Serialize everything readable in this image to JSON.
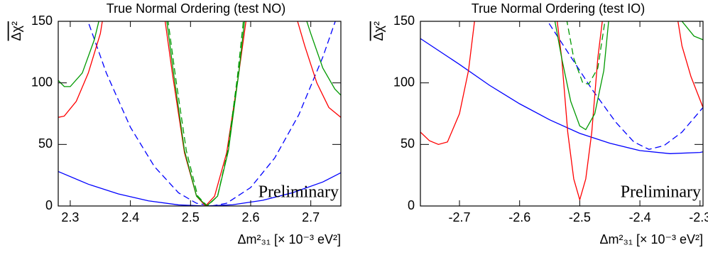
{
  "chart_data": [
    {
      "type": "line",
      "title": "True Normal Ordering (test NO)",
      "x_label": "Δm²₃₁ [× 10⁻³ eV²]",
      "y_label": "Δχ²",
      "annotation": "Preliminary",
      "annotation_color": "#ff0000",
      "xlim": [
        2.28,
        2.75
      ],
      "ylim": [
        0,
        150
      ],
      "xticks": [
        2.3,
        2.4,
        2.5,
        2.6,
        2.7
      ],
      "yticks": [
        0,
        50,
        100,
        150
      ],
      "series": [
        {
          "color": "#0000ff",
          "style": "solid",
          "x": [
            2.28,
            2.33,
            2.38,
            2.43,
            2.48,
            2.525,
            2.57,
            2.62,
            2.67,
            2.72,
            2.75
          ],
          "values": [
            28,
            17.7,
            9.8,
            4.2,
            0.9,
            0,
            1,
            4.6,
            10.8,
            19.5,
            27
          ]
        },
        {
          "color": "#0000ff",
          "style": "dashed",
          "x": [
            2.32,
            2.36,
            2.4,
            2.44,
            2.48,
            2.51,
            2.535,
            2.56,
            2.6,
            2.64,
            2.68,
            2.72,
            2.75
          ],
          "values": [
            163,
            108,
            64,
            32,
            10.7,
            2.2,
            0,
            2.2,
            15,
            39,
            74,
            121,
            163
          ]
        },
        {
          "color": "#ff0000",
          "style": "solid",
          "x": [
            2.28,
            2.29,
            2.31,
            2.33,
            2.35,
            2.355,
            null,
            2.455,
            2.47,
            2.49,
            2.51,
            2.525,
            2.54,
            2.56,
            2.58,
            2.595,
            null,
            2.675,
            2.69,
            2.71,
            2.73,
            2.75
          ],
          "values": [
            72,
            73,
            85,
            108,
            140,
            155,
            null,
            160,
            107,
            43,
            8,
            0,
            8,
            43,
            107,
            160,
            null,
            155,
            130,
            100,
            80,
            72
          ]
        },
        {
          "color": "#009900",
          "style": "solid",
          "x": [
            2.28,
            2.29,
            2.3,
            2.32,
            2.34,
            2.35,
            null,
            2.458,
            2.472,
            2.49,
            2.51,
            2.527,
            2.545,
            2.563,
            2.58,
            2.592,
            null,
            2.69,
            2.7,
            2.72,
            2.74,
            2.75
          ],
          "values": [
            102,
            97,
            97,
            108,
            135,
            155,
            null,
            160,
            107,
            45,
            8,
            0,
            8,
            45,
            107,
            160,
            null,
            155,
            140,
            112,
            95,
            90
          ]
        },
        {
          "color": "#009900",
          "style": "dashed",
          "x": [
            2.46,
            2.475,
            2.493,
            2.512,
            2.528,
            2.545,
            2.562,
            2.578,
            2.59
          ],
          "values": [
            160,
            105,
            45,
            8,
            0,
            8,
            45,
            105,
            160
          ]
        }
      ]
    },
    {
      "type": "line",
      "title": "True Normal Ordering (test IO)",
      "x_label": "Δm²₃₁ [× 10⁻³ eV²]",
      "y_label": "Δχ²",
      "annotation": "Preliminary",
      "annotation_color": "#ff0000",
      "xlim": [
        -2.765,
        -2.295
      ],
      "ylim": [
        0,
        150
      ],
      "xticks": [
        -2.7,
        -2.6,
        -2.5,
        -2.4,
        -2.3
      ],
      "yticks": [
        0,
        50,
        100,
        150
      ],
      "series": [
        {
          "color": "#0000ff",
          "style": "solid",
          "x": [
            -2.765,
            -2.7,
            -2.65,
            -2.6,
            -2.55,
            -2.5,
            -2.45,
            -2.4,
            -2.35,
            -2.3,
            -2.295
          ],
          "values": [
            136,
            115,
            98,
            83,
            70,
            59,
            51,
            45,
            42.5,
            43.5,
            44
          ]
        },
        {
          "color": "#0000ff",
          "style": "dashed",
          "x": [
            -2.56,
            -2.52,
            -2.48,
            -2.44,
            -2.41,
            -2.385,
            -2.36,
            -2.33,
            -2.295
          ],
          "values": [
            155,
            125,
            95,
            68,
            52,
            46,
            49,
            60,
            80
          ]
        },
        {
          "color": "#ff0000",
          "style": "solid",
          "x": [
            -2.765,
            -2.75,
            -2.735,
            -2.72,
            -2.7,
            -2.685,
            -2.675,
            -2.67,
            null,
            -2.54,
            -2.53,
            -2.52,
            -2.51,
            -2.5,
            -2.49,
            -2.48,
            -2.47,
            -2.46,
            null,
            -2.34,
            -2.33,
            -2.315,
            -2.295
          ],
          "values": [
            60,
            53,
            50,
            52,
            75,
            110,
            150,
            160,
            null,
            160,
            120,
            60,
            22,
            5,
            22,
            60,
            120,
            160,
            null,
            160,
            130,
            105,
            80
          ]
        },
        {
          "color": "#009900",
          "style": "solid",
          "x": [
            -2.545,
            -2.53,
            -2.515,
            -2.5,
            -2.49,
            -2.475,
            -2.46,
            -2.45,
            null,
            -2.345,
            -2.33,
            -2.31,
            -2.295
          ],
          "values": [
            160,
            120,
            85,
            65,
            62,
            75,
            110,
            160,
            null,
            160,
            150,
            138,
            135
          ]
        },
        {
          "color": "#009900",
          "style": "dashed",
          "x": [
            -2.525,
            -2.51,
            -2.495,
            -2.485,
            -2.47,
            -2.455
          ],
          "values": [
            160,
            120,
            100,
            99,
            112,
            160
          ]
        }
      ]
    }
  ]
}
